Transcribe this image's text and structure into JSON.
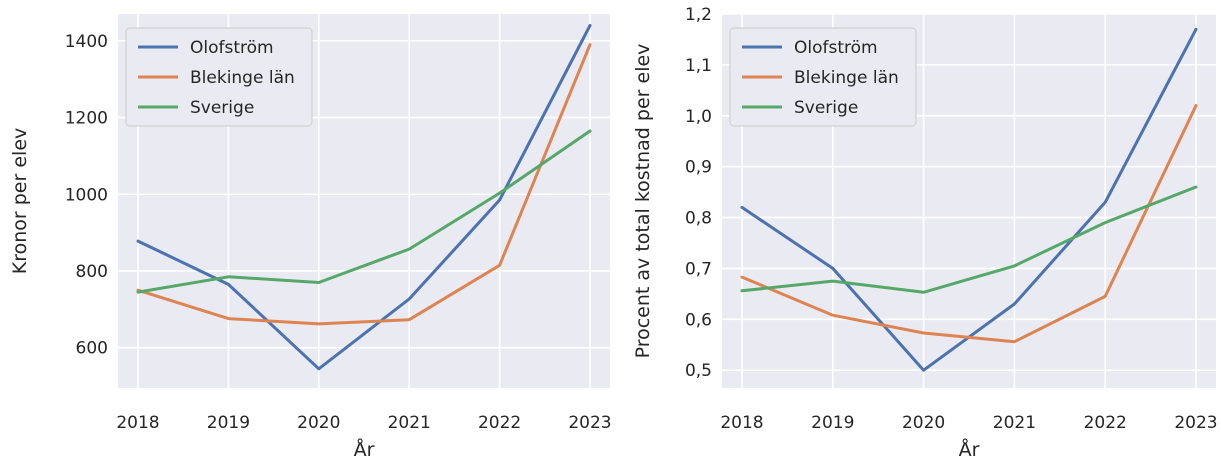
{
  "chart_data": [
    {
      "type": "line",
      "xlabel": "År",
      "ylabel": "Kronor per elev",
      "x": [
        "2018",
        "2019",
        "2020",
        "2021",
        "2022",
        "2023"
      ],
      "ylim": [
        495,
        1470
      ],
      "yticks": [
        "600",
        "800",
        "1000",
        "1200",
        "1400"
      ],
      "ytick_values": [
        600,
        800,
        1000,
        1200,
        1400
      ],
      "grid": true,
      "legend_position": "top-left",
      "series": [
        {
          "name": "Olofström",
          "color": "#4C72B0",
          "values": [
            878,
            765,
            545,
            727,
            985,
            1440
          ]
        },
        {
          "name": "Blekinge län",
          "color": "#DD8452",
          "values": [
            750,
            676,
            662,
            673,
            815,
            1390
          ]
        },
        {
          "name": "Sverige",
          "color": "#55A868",
          "values": [
            745,
            785,
            770,
            857,
            1003,
            1165
          ]
        }
      ]
    },
    {
      "type": "line",
      "xlabel": "År",
      "ylabel": "Procent av total kostnad per elev",
      "x": [
        "2018",
        "2019",
        "2020",
        "2021",
        "2022",
        "2023"
      ],
      "ylim": [
        0.465,
        1.2
      ],
      "yticks": [
        "0,5",
        "0,6",
        "0,7",
        "0,8",
        "0,9",
        "1,0",
        "1,1",
        "1,2"
      ],
      "ytick_values": [
        0.5,
        0.6,
        0.7,
        0.8,
        0.9,
        1.0,
        1.1,
        1.2
      ],
      "grid": true,
      "legend_position": "top-left",
      "series": [
        {
          "name": "Olofström",
          "color": "#4C72B0",
          "values": [
            0.82,
            0.7,
            0.5,
            0.63,
            0.83,
            1.17
          ]
        },
        {
          "name": "Blekinge län",
          "color": "#DD8452",
          "values": [
            0.683,
            0.608,
            0.573,
            0.556,
            0.645,
            1.02
          ]
        },
        {
          "name": "Sverige",
          "color": "#55A868",
          "values": [
            0.656,
            0.675,
            0.653,
            0.705,
            0.79,
            0.86
          ]
        }
      ]
    }
  ]
}
